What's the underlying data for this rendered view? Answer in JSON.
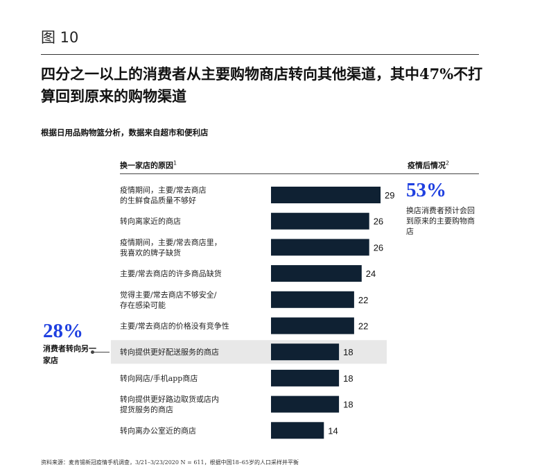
{
  "figure_label": "图 10",
  "title": "四分之一以上的消费者从主要购物商店转向其他渠道，其中47%不打算回到原来的购物渠道",
  "subtitle": "根据日用品购物篮分析，数据来自超市和便利店",
  "left_header": "换一家店的原因",
  "left_header_sup": "1",
  "right_header": "疫情后情况",
  "right_header_sup": "2",
  "right_callout": {
    "pct": "53%",
    "text": "换店消费者预计会回到原来的主要购物商店"
  },
  "left_callout": {
    "pct": "28%",
    "text": "消费者转向另一家店"
  },
  "source": "资料来源：麦肯锡新冠疫情手机调查，3/21–3/23/2020 N = 611，根据中国18–65岁的人口采样并平衡",
  "colors": {
    "bar": "#0f2133",
    "accent": "#1f40e0",
    "highlight": "#e8e8e8"
  },
  "chart_data": {
    "type": "bar",
    "orientation": "horizontal",
    "categories": [
      [
        "疫情期间，主要/常去商店",
        "的生鲜食品质量不够好"
      ],
      [
        "转向离家近的商店"
      ],
      [
        "疫情期间，主要/常去商店里，",
        "我喜欢的牌子缺货"
      ],
      [
        "主要/常去商店的许多商品缺货"
      ],
      [
        "觉得主要/常去商店不够安全/",
        "存在感染可能"
      ],
      [
        "主要/常去商店的价格没有竞争性"
      ],
      [
        "转向提供更好配送服务的商店"
      ],
      [
        "转向网店/手机app商店"
      ],
      [
        "转向提供更好路边取货或店内",
        "提货服务的商店"
      ],
      [
        "转向离办公室近的商店"
      ]
    ],
    "values": [
      29,
      26,
      26,
      24,
      22,
      22,
      18,
      18,
      18,
      14
    ],
    "highlighted_index": 6
  }
}
